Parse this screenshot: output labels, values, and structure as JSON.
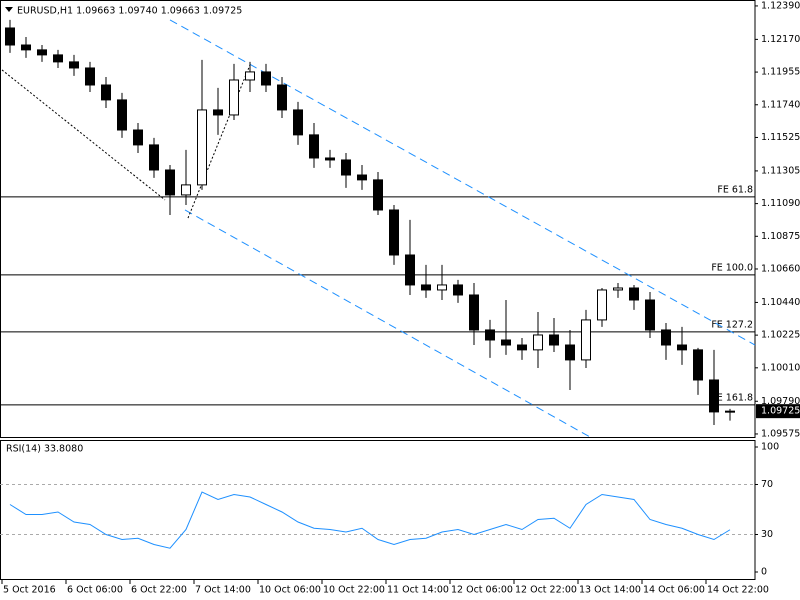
{
  "chart_data": [
    {
      "type": "candlestick",
      "title": "EURUSD,H1  1.09663 1.09740 1.09663 1.09725",
      "x": [
        0,
        4,
        8,
        12,
        16,
        20,
        24,
        28,
        32,
        36,
        40,
        44,
        48,
        52,
        56,
        60,
        64,
        68,
        72,
        76,
        80,
        84,
        88,
        92,
        96,
        100,
        104,
        108,
        112,
        116,
        120,
        124,
        128,
        132,
        136,
        140,
        144,
        148,
        152,
        156,
        160,
        164,
        168,
        172,
        176,
        180
      ],
      "open": [
        1.12245,
        1.12133,
        1.12101,
        1.12068,
        1.12022,
        1.11982,
        1.1187,
        1.11772,
        1.11574,
        1.11476,
        1.11311,
        1.11147,
        1.11213,
        1.11706,
        1.11673,
        1.11903,
        1.11956,
        1.1187,
        1.11706,
        1.11542,
        1.1139,
        1.11377,
        1.11278,
        1.11246,
        1.11048,
        1.10752,
        1.10555,
        1.10522,
        1.10555,
        1.10489,
        1.10259,
        1.10193,
        1.1016,
        1.10128,
        1.10226,
        1.1016,
        1.10062,
        1.10325,
        1.10522,
        1.10535,
        1.10456,
        1.10259,
        1.1016,
        1.10128,
        1.0993,
        1.0972
      ],
      "high": [
        1.12298,
        1.12186,
        1.12133,
        1.12101,
        1.12068,
        1.12022,
        1.11923,
        1.11818,
        1.1162,
        1.11522,
        1.11344,
        1.11443,
        1.12035,
        1.11851,
        1.12009,
        1.12022,
        1.12009,
        1.11923,
        1.11759,
        1.1162,
        1.11443,
        1.11423,
        1.11344,
        1.11298,
        1.11081,
        1.10983,
        1.10687,
        1.10687,
        1.10588,
        1.10568,
        1.10325,
        1.10456,
        1.10206,
        1.10377,
        1.10338,
        1.10259,
        1.10391,
        1.10535,
        1.10568,
        1.10555,
        1.10509,
        1.10305,
        1.10279,
        1.10141,
        1.10128,
        1.0974
      ],
      "low": [
        1.12081,
        1.12048,
        1.12022,
        1.11982,
        1.1193,
        1.11824,
        1.11719,
        1.11522,
        1.11423,
        1.11259,
        1.11015,
        1.11081,
        1.1118,
        1.11542,
        1.1164,
        1.11824,
        1.11824,
        1.11653,
        1.11476,
        1.11325,
        1.11325,
        1.11193,
        1.1118,
        1.11015,
        1.10687,
        1.10489,
        1.1047,
        1.10456,
        1.10437,
        1.1016,
        1.10075,
        1.10095,
        1.10062,
        1.10009,
        1.10114,
        1.09864,
        1.10009,
        1.10279,
        1.1047,
        1.10391,
        1.10206,
        1.10062,
        1.10029,
        1.09832,
        1.09634,
        1.09663
      ],
      "close": [
        1.12133,
        1.12101,
        1.12068,
        1.12022,
        1.11982,
        1.1187,
        1.11772,
        1.11574,
        1.11476,
        1.11311,
        1.11147,
        1.11213,
        1.11706,
        1.11673,
        1.11903,
        1.11956,
        1.1187,
        1.11706,
        1.11542,
        1.1139,
        1.11377,
        1.11278,
        1.11246,
        1.11048,
        1.10752,
        1.10555,
        1.10522,
        1.10555,
        1.10489,
        1.10259,
        1.10193,
        1.1016,
        1.10128,
        1.10226,
        1.1016,
        1.10062,
        1.10325,
        1.10522,
        1.10535,
        1.10456,
        1.10259,
        1.1016,
        1.10128,
        1.0993,
        1.0972,
        1.09725
      ],
      "bull_color": "#ffffff",
      "bear_color": "#000000",
      "outline_color": "#000000",
      "xlim": [
        -0.5,
        188.25
      ],
      "xticks": [
        {
          "value": 0,
          "label": "5 Oct 2016"
        },
        {
          "value": 16,
          "label": "6 Oct 06:00"
        },
        {
          "value": 32,
          "label": "6 Oct 22:00"
        },
        {
          "value": 48,
          "label": "7 Oct 14:00"
        },
        {
          "value": 64,
          "label": "10 Oct 06:00"
        },
        {
          "value": 80,
          "label": "10 Oct 22:00"
        },
        {
          "value": 96,
          "label": "11 Oct 14:00"
        },
        {
          "value": 112,
          "label": "12 Oct 06:00"
        },
        {
          "value": 128,
          "label": "12 Oct 22:00"
        },
        {
          "value": 144,
          "label": "13 Oct 14:00"
        },
        {
          "value": 160,
          "label": "14 Oct 06:00"
        },
        {
          "value": 176,
          "label": "14 Oct 22:00"
        }
      ],
      "ylim": [
        1.09555,
        1.12429
      ],
      "yticks": [
        {
          "value": 1.1239,
          "label": "1.12390"
        },
        {
          "value": 1.1217,
          "label": "1.12170"
        },
        {
          "value": 1.11955,
          "label": "1.11955"
        },
        {
          "value": 1.1174,
          "label": "1.11740"
        },
        {
          "value": 1.11525,
          "label": "1.11525"
        },
        {
          "value": 1.11305,
          "label": "1.11305"
        },
        {
          "value": 1.1109,
          "label": "1.11090"
        },
        {
          "value": 1.10875,
          "label": "1.10875"
        },
        {
          "value": 1.1066,
          "label": "1.10660"
        },
        {
          "value": 1.1044,
          "label": "1.10440"
        },
        {
          "value": 1.10225,
          "label": "1.10225"
        },
        {
          "value": 1.1001,
          "label": "1.10010"
        },
        {
          "value": 1.0979,
          "label": "1.09790"
        },
        {
          "value": 1.09575,
          "label": "1.09575"
        }
      ],
      "last_price": {
        "value": 1.09725,
        "label": "1.09725"
      },
      "levels": [
        {
          "label": "FE 61.8",
          "value": 1.11134
        },
        {
          "label": "FE 100.0",
          "value": 1.10621
        },
        {
          "label": "FE 127.2",
          "value": 1.10246
        },
        {
          "label": "FE 161.8",
          "value": 1.09766
        }
      ],
      "trendlines": [
        {
          "x": [
            42,
            188.25
          ],
          "y": [
            1.12298,
            1.1016
          ],
          "color": "#1e90ff",
          "style": "dashed"
        },
        {
          "x": [
            45.75,
            147
          ],
          "y": [
            1.11048,
            1.09555
          ],
          "color": "#1e90ff",
          "style": "dashed"
        },
        {
          "x": [
            0,
            40.75
          ],
          "y": [
            1.11969,
            1.11114
          ],
          "color": "#000000",
          "style": "dotted"
        },
        {
          "x": [
            46.5,
            62
          ],
          "y": [
            1.10995,
            1.12002
          ],
          "color": "#000000",
          "style": "dotted"
        }
      ]
    },
    {
      "type": "line",
      "title": "RSI(14) 33.8080",
      "color": "#1e90ff",
      "values": [
        54,
        46,
        46,
        48,
        40,
        38,
        30,
        26,
        27,
        22,
        19,
        34,
        64,
        58,
        62,
        60,
        54,
        48,
        40,
        35,
        34,
        32,
        35,
        26,
        22,
        26,
        27,
        32,
        34,
        30,
        34,
        38,
        34,
        42,
        43,
        35,
        54,
        62,
        60,
        58,
        42,
        38,
        35,
        30,
        26,
        33.808
      ],
      "ylim": [
        0,
        100
      ],
      "yticks": [
        0,
        30,
        70,
        100
      ],
      "levels": [
        30,
        70
      ]
    }
  ]
}
